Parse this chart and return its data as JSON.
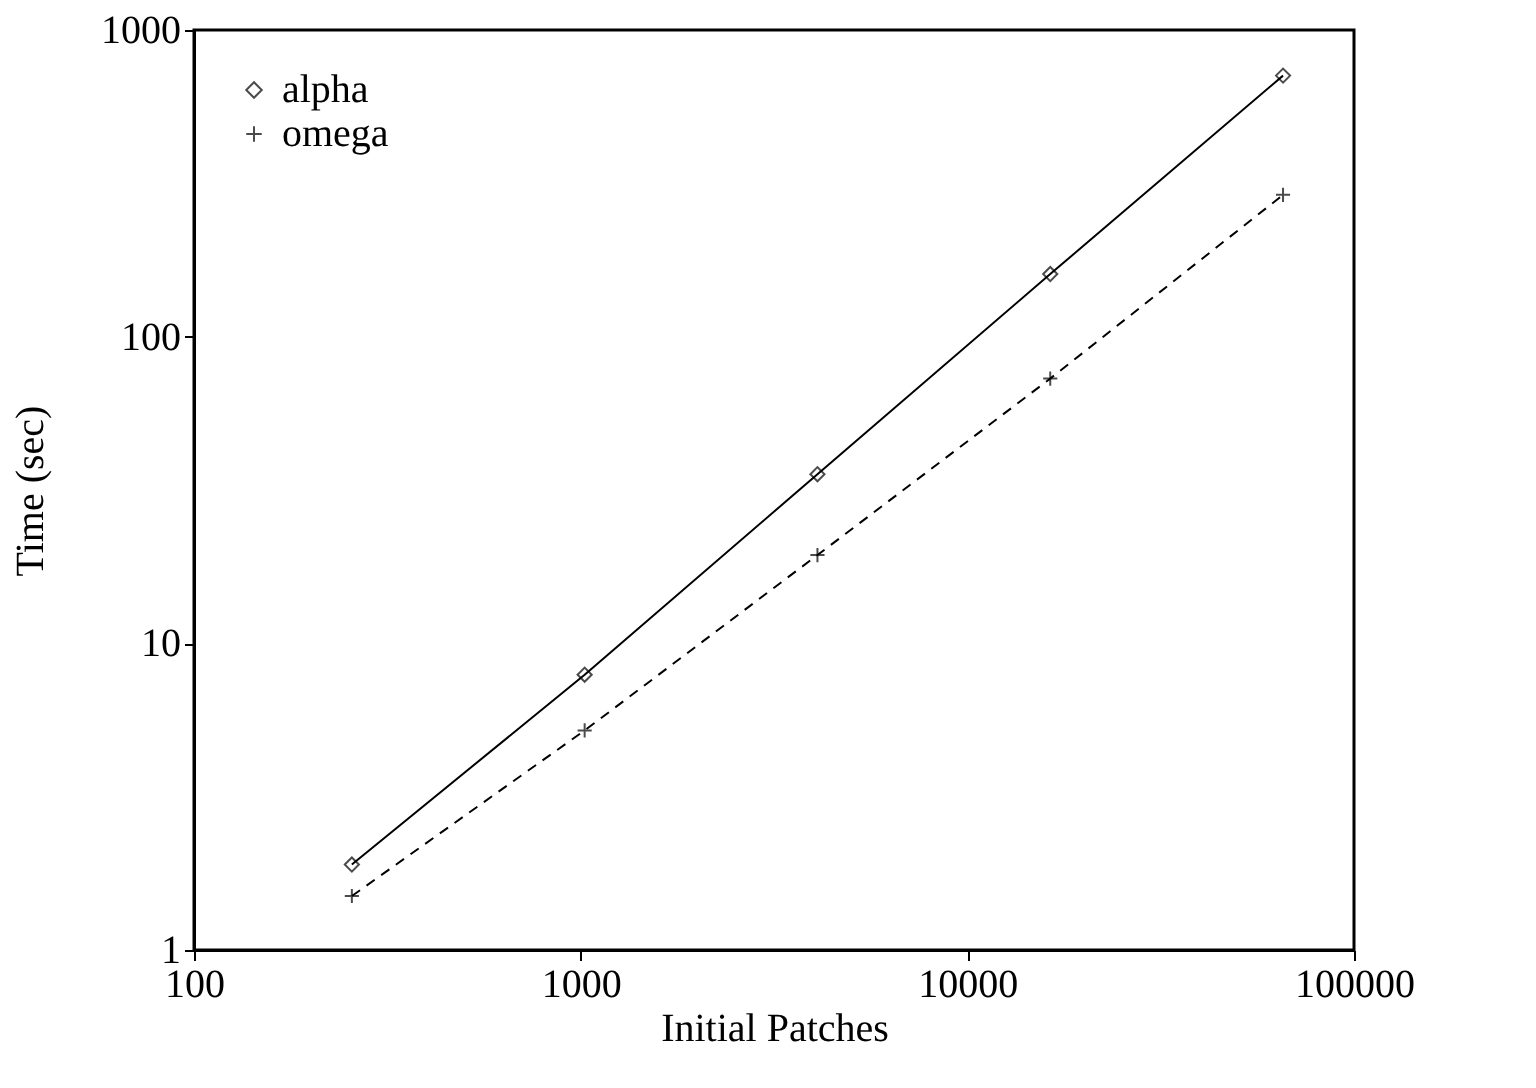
{
  "chart_data": {
    "type": "line",
    "xlabel": "Initial Patches",
    "ylabel": "Time (sec)",
    "x": [
      256,
      1024,
      4096,
      16384,
      65536
    ],
    "series": [
      {
        "name": "alpha",
        "color": "#000000",
        "marker": "diamond",
        "line_style": "solid",
        "values": [
          1.9,
          7.9,
          35.6,
          160,
          710
        ]
      },
      {
        "name": "omega",
        "color": "#000000",
        "marker": "cross",
        "line_style": "dashed",
        "values": [
          1.5,
          5.2,
          19.4,
          73,
          290
        ]
      }
    ],
    "log": "xy",
    "xlim": [
      100,
      100000
    ],
    "xticks": [
      100,
      1000,
      10000,
      100000
    ],
    "ylim": [
      1,
      1000
    ],
    "yticks": [
      1,
      10,
      100,
      1000
    ],
    "grid": false,
    "legend": "top left"
  }
}
